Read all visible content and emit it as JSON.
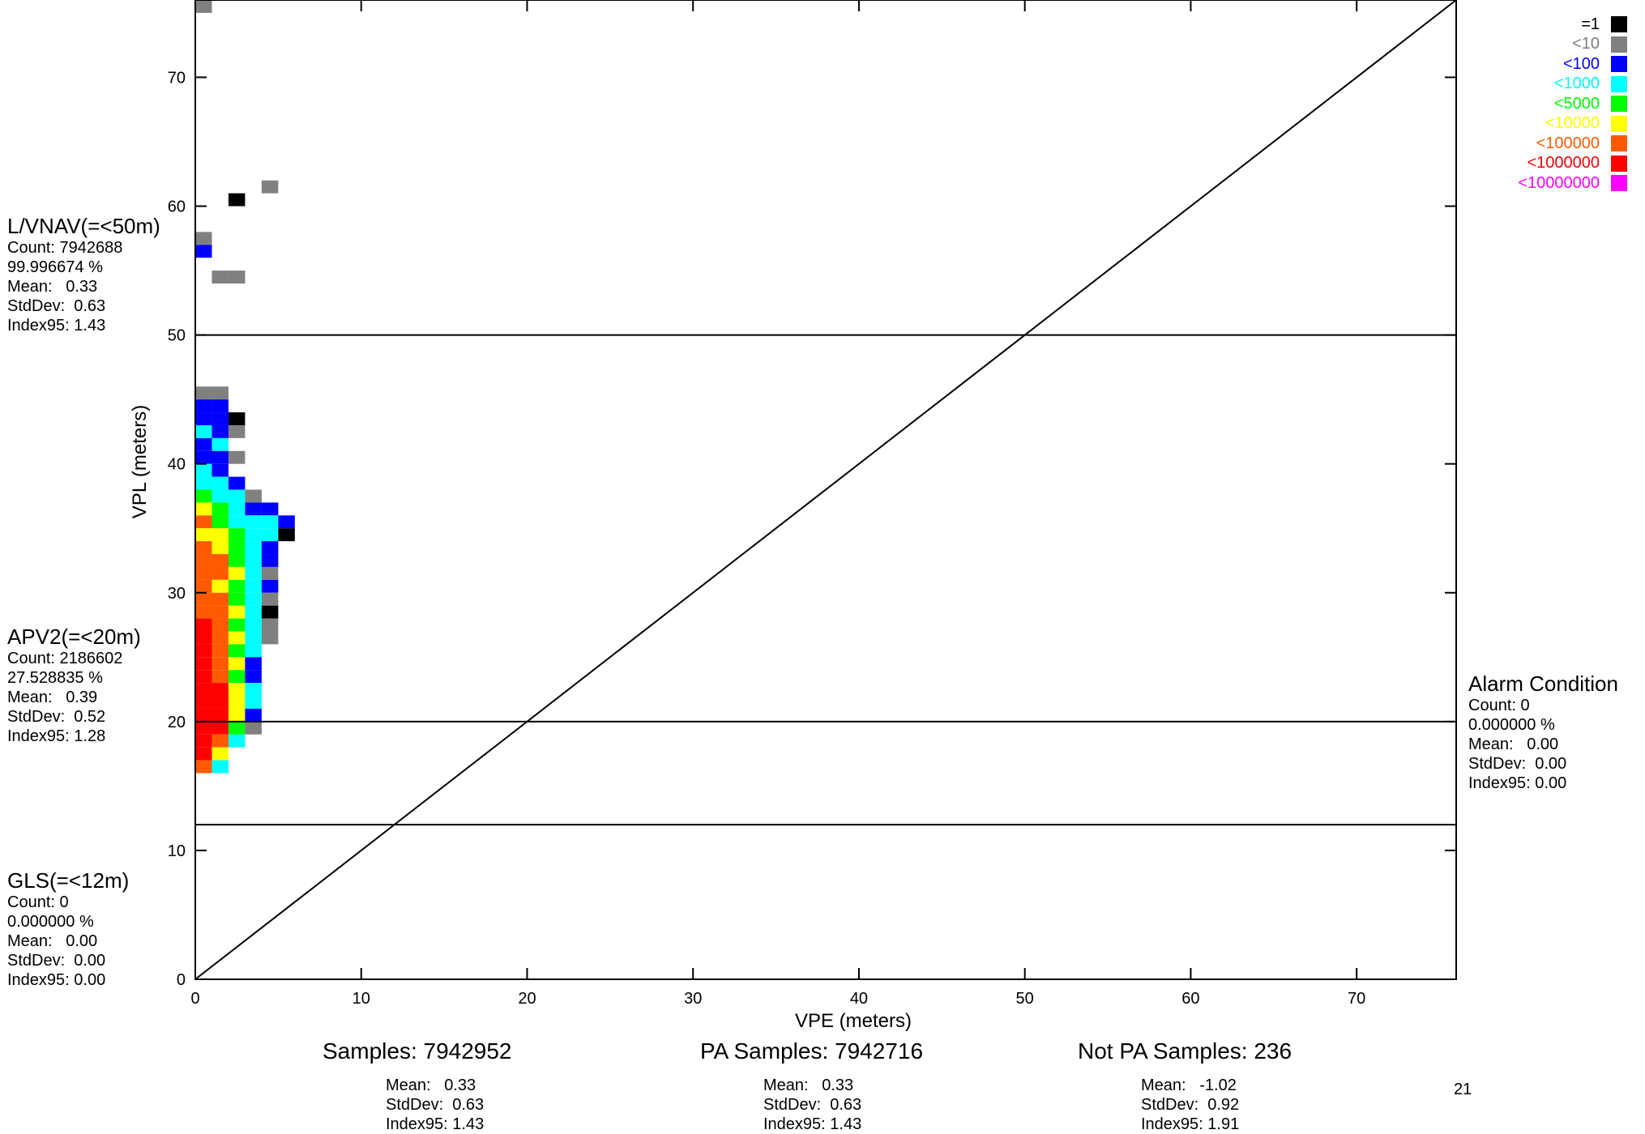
{
  "chart_data": {
    "type": "heatmap",
    "xlabel": "VPE (meters)",
    "ylabel": "VPL (meters)",
    "xlim": [
      0,
      76
    ],
    "ylim": [
      0,
      76
    ],
    "x_ticks": [
      0,
      10,
      20,
      30,
      40,
      50,
      60,
      70
    ],
    "y_ticks": [
      0,
      10,
      20,
      30,
      40,
      50,
      60,
      70
    ],
    "threshold_lines": [
      12,
      20,
      50
    ],
    "diagonal": true,
    "cell_size": [
      1,
      1
    ],
    "level_colors": [
      "#000000",
      "#808080",
      "#0000ff",
      "#00ffff",
      "#00ff00",
      "#ffff00",
      "#ff5a00",
      "#ff0000",
      "#ff00ff"
    ],
    "legend": [
      {
        "label": "=1",
        "color": "#000000"
      },
      {
        "label": "<10",
        "color": "#808080"
      },
      {
        "label": "<100",
        "color": "#0000ff"
      },
      {
        "label": "<1000",
        "color": "#00ffff"
      },
      {
        "label": "<5000",
        "color": "#00ff00"
      },
      {
        "label": "<10000",
        "color": "#ffff00"
      },
      {
        "label": "<100000",
        "color": "#ff5a00"
      },
      {
        "label": "<1000000",
        "color": "#ff0000"
      },
      {
        "label": "<10000000",
        "color": "#ff00ff"
      }
    ],
    "bins": [
      {
        "x": 0,
        "y": 75,
        "level": 1
      },
      {
        "x": 2,
        "y": 60,
        "level": 0
      },
      {
        "x": 4,
        "y": 61,
        "level": 1
      },
      {
        "x": 0,
        "y": 57,
        "level": 1
      },
      {
        "x": 0,
        "y": 56,
        "level": 2
      },
      {
        "x": 1,
        "y": 54,
        "level": 1
      },
      {
        "x": 2,
        "y": 54,
        "level": 1
      },
      {
        "x": 0,
        "y": 45,
        "level": 1
      },
      {
        "x": 1,
        "y": 45,
        "level": 1
      },
      {
        "x": 0,
        "y": 44,
        "level": 2
      },
      {
        "x": 1,
        "y": 44,
        "level": 2
      },
      {
        "x": 0,
        "y": 43,
        "level": 2
      },
      {
        "x": 1,
        "y": 43,
        "level": 2
      },
      {
        "x": 2,
        "y": 43,
        "level": 0
      },
      {
        "x": 0,
        "y": 42,
        "level": 3
      },
      {
        "x": 1,
        "y": 42,
        "level": 2
      },
      {
        "x": 2,
        "y": 42,
        "level": 1
      },
      {
        "x": 0,
        "y": 41,
        "level": 2
      },
      {
        "x": 1,
        "y": 41,
        "level": 3
      },
      {
        "x": 0,
        "y": 40,
        "level": 2
      },
      {
        "x": 1,
        "y": 40,
        "level": 2
      },
      {
        "x": 2,
        "y": 40,
        "level": 1
      },
      {
        "x": 0,
        "y": 39,
        "level": 3
      },
      {
        "x": 1,
        "y": 39,
        "level": 2
      },
      {
        "x": 0,
        "y": 38,
        "level": 3
      },
      {
        "x": 1,
        "y": 38,
        "level": 3
      },
      {
        "x": 2,
        "y": 38,
        "level": 2
      },
      {
        "x": 0,
        "y": 37,
        "level": 4
      },
      {
        "x": 1,
        "y": 37,
        "level": 3
      },
      {
        "x": 2,
        "y": 37,
        "level": 3
      },
      {
        "x": 3,
        "y": 37,
        "level": 1
      },
      {
        "x": 0,
        "y": 36,
        "level": 5
      },
      {
        "x": 1,
        "y": 36,
        "level": 4
      },
      {
        "x": 2,
        "y": 36,
        "level": 3
      },
      {
        "x": 3,
        "y": 36,
        "level": 2
      },
      {
        "x": 4,
        "y": 36,
        "level": 2
      },
      {
        "x": 0,
        "y": 35,
        "level": 6
      },
      {
        "x": 1,
        "y": 35,
        "level": 4
      },
      {
        "x": 2,
        "y": 35,
        "level": 3
      },
      {
        "x": 3,
        "y": 35,
        "level": 3
      },
      {
        "x": 4,
        "y": 35,
        "level": 3
      },
      {
        "x": 5,
        "y": 35,
        "level": 2
      },
      {
        "x": 0,
        "y": 34,
        "level": 5
      },
      {
        "x": 1,
        "y": 34,
        "level": 5
      },
      {
        "x": 2,
        "y": 34,
        "level": 4
      },
      {
        "x": 3,
        "y": 34,
        "level": 3
      },
      {
        "x": 4,
        "y": 34,
        "level": 3
      },
      {
        "x": 5,
        "y": 34,
        "level": 0
      },
      {
        "x": 0,
        "y": 33,
        "level": 6
      },
      {
        "x": 1,
        "y": 33,
        "level": 5
      },
      {
        "x": 2,
        "y": 33,
        "level": 4
      },
      {
        "x": 3,
        "y": 33,
        "level": 3
      },
      {
        "x": 4,
        "y": 33,
        "level": 2
      },
      {
        "x": 0,
        "y": 32,
        "level": 6
      },
      {
        "x": 1,
        "y": 32,
        "level": 6
      },
      {
        "x": 2,
        "y": 32,
        "level": 4
      },
      {
        "x": 3,
        "y": 32,
        "level": 3
      },
      {
        "x": 4,
        "y": 32,
        "level": 2
      },
      {
        "x": 0,
        "y": 31,
        "level": 6
      },
      {
        "x": 1,
        "y": 31,
        "level": 6
      },
      {
        "x": 2,
        "y": 31,
        "level": 5
      },
      {
        "x": 3,
        "y": 31,
        "level": 3
      },
      {
        "x": 4,
        "y": 31,
        "level": 1
      },
      {
        "x": 0,
        "y": 30,
        "level": 6
      },
      {
        "x": 1,
        "y": 30,
        "level": 5
      },
      {
        "x": 2,
        "y": 30,
        "level": 4
      },
      {
        "x": 3,
        "y": 30,
        "level": 3
      },
      {
        "x": 4,
        "y": 30,
        "level": 2
      },
      {
        "x": 0,
        "y": 29,
        "level": 6
      },
      {
        "x": 1,
        "y": 29,
        "level": 6
      },
      {
        "x": 2,
        "y": 29,
        "level": 4
      },
      {
        "x": 3,
        "y": 29,
        "level": 3
      },
      {
        "x": 4,
        "y": 29,
        "level": 1
      },
      {
        "x": 0,
        "y": 28,
        "level": 6
      },
      {
        "x": 1,
        "y": 28,
        "level": 6
      },
      {
        "x": 2,
        "y": 28,
        "level": 5
      },
      {
        "x": 3,
        "y": 28,
        "level": 3
      },
      {
        "x": 4,
        "y": 28,
        "level": 0
      },
      {
        "x": 0,
        "y": 27,
        "level": 7
      },
      {
        "x": 1,
        "y": 27,
        "level": 6
      },
      {
        "x": 2,
        "y": 27,
        "level": 4
      },
      {
        "x": 3,
        "y": 27,
        "level": 3
      },
      {
        "x": 4,
        "y": 27,
        "level": 1
      },
      {
        "x": 0,
        "y": 26,
        "level": 7
      },
      {
        "x": 1,
        "y": 26,
        "level": 6
      },
      {
        "x": 2,
        "y": 26,
        "level": 5
      },
      {
        "x": 3,
        "y": 26,
        "level": 3
      },
      {
        "x": 4,
        "y": 26,
        "level": 1
      },
      {
        "x": 0,
        "y": 25,
        "level": 7
      },
      {
        "x": 1,
        "y": 25,
        "level": 6
      },
      {
        "x": 2,
        "y": 25,
        "level": 4
      },
      {
        "x": 3,
        "y": 25,
        "level": 3
      },
      {
        "x": 0,
        "y": 24,
        "level": 7
      },
      {
        "x": 1,
        "y": 24,
        "level": 6
      },
      {
        "x": 2,
        "y": 24,
        "level": 5
      },
      {
        "x": 3,
        "y": 24,
        "level": 2
      },
      {
        "x": 0,
        "y": 23,
        "level": 7
      },
      {
        "x": 1,
        "y": 23,
        "level": 6
      },
      {
        "x": 2,
        "y": 23,
        "level": 4
      },
      {
        "x": 3,
        "y": 23,
        "level": 2
      },
      {
        "x": 0,
        "y": 22,
        "level": 7
      },
      {
        "x": 1,
        "y": 22,
        "level": 7
      },
      {
        "x": 2,
        "y": 22,
        "level": 5
      },
      {
        "x": 3,
        "y": 22,
        "level": 3
      },
      {
        "x": 0,
        "y": 21,
        "level": 7
      },
      {
        "x": 1,
        "y": 21,
        "level": 7
      },
      {
        "x": 2,
        "y": 21,
        "level": 5
      },
      {
        "x": 3,
        "y": 21,
        "level": 3
      },
      {
        "x": 0,
        "y": 20,
        "level": 7
      },
      {
        "x": 1,
        "y": 20,
        "level": 7
      },
      {
        "x": 2,
        "y": 20,
        "level": 5
      },
      {
        "x": 3,
        "y": 20,
        "level": 2
      },
      {
        "x": 0,
        "y": 19,
        "level": 7
      },
      {
        "x": 1,
        "y": 19,
        "level": 7
      },
      {
        "x": 2,
        "y": 19,
        "level": 4
      },
      {
        "x": 3,
        "y": 19,
        "level": 1
      },
      {
        "x": 0,
        "y": 18,
        "level": 7
      },
      {
        "x": 1,
        "y": 18,
        "level": 6
      },
      {
        "x": 2,
        "y": 18,
        "level": 3
      },
      {
        "x": 0,
        "y": 17,
        "level": 7
      },
      {
        "x": 1,
        "y": 17,
        "level": 5
      },
      {
        "x": 0,
        "y": 16,
        "level": 6
      },
      {
        "x": 1,
        "y": 16,
        "level": 3
      }
    ]
  },
  "left_blocks": [
    {
      "title": "L/VNAV(=<50m)",
      "lines": [
        "Count: 7942688",
        "99.996674 %",
        "Mean:   0.33",
        "StdDev:  0.63",
        "Index95: 1.43"
      ]
    },
    {
      "title": "APV2(=<20m)",
      "lines": [
        "Count: 2186602",
        "27.528835 %",
        "Mean:   0.39",
        "StdDev:  0.52",
        "Index95: 1.28"
      ]
    },
    {
      "title": "GLS(=<12m)",
      "lines": [
        "Count: 0",
        "0.000000 %",
        "Mean:   0.00",
        "StdDev:  0.00",
        "Index95: 0.00"
      ]
    }
  ],
  "alarm_block": {
    "title": "Alarm Condition",
    "lines": [
      "Count: 0",
      "0.000000 %",
      "Mean:   0.00",
      "StdDev:  0.00",
      "Index95: 0.00"
    ]
  },
  "bottom": {
    "samples": "Samples: 7942952",
    "pa_samples": "PA Samples: 7942716",
    "not_pa_samples": "Not PA Samples: 236",
    "samples_stats": [
      "Mean:   0.33",
      "StdDev:  0.63",
      "Index95: 1.43"
    ],
    "pa_stats": [
      "Mean:   0.33",
      "StdDev:  0.63",
      "Index95: 1.43"
    ],
    "not_pa_stats": [
      "Mean:   -1.02",
      "StdDev:  0.92",
      "Index95: 1.91"
    ]
  },
  "page_number": "21"
}
